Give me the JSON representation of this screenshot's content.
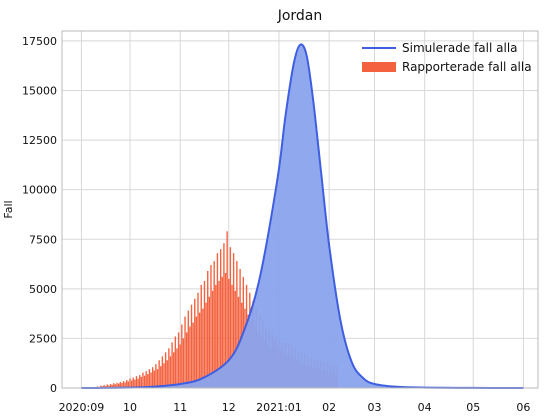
{
  "chart_data": {
    "type": "line",
    "title": "Jordan",
    "xlabel": "",
    "ylabel": "Fall",
    "x_tick_labels": [
      "2020:09",
      "10",
      "11",
      "12",
      "2021:01",
      "02",
      "03",
      "04",
      "05",
      "06"
    ],
    "x_ticks": [
      "2020-09-01",
      "2020-10-01",
      "2020-11-01",
      "2020-12-01",
      "2021-01-01",
      "2021-02-01",
      "2021-03-01",
      "2021-04-01",
      "2021-05-01",
      "2021-06-01"
    ],
    "xlim": [
      "2020-08-20",
      "2021-06-10"
    ],
    "ylim": [
      0,
      18000
    ],
    "y_ticks": [
      0,
      2500,
      5000,
      7500,
      10000,
      12500,
      15000,
      17500
    ],
    "y_tick_labels": [
      "0",
      "2500",
      "5000",
      "7500",
      "10000",
      "12500",
      "15000",
      "17500"
    ],
    "grid": true,
    "legend_position": "top-right",
    "legend": [
      "Simulerade fall alla",
      "Rapporterade fall alla"
    ],
    "simulated": {
      "name": "Simulerade fall alla",
      "color": "#3f5fe0",
      "fill_color": "#8aa3ec",
      "x": [
        "2020-09-01",
        "2020-09-15",
        "2020-10-01",
        "2020-10-15",
        "2020-11-01",
        "2020-11-15",
        "2020-12-01",
        "2020-12-10",
        "2020-12-20",
        "2020-12-31",
        "2021-01-05",
        "2021-01-10",
        "2021-01-14",
        "2021-01-18",
        "2021-01-22",
        "2021-01-27",
        "2021-02-01",
        "2021-02-08",
        "2021-02-15",
        "2021-02-22",
        "2021-03-01",
        "2021-03-15",
        "2021-04-01",
        "2021-05-01",
        "2021-06-01"
      ],
      "values": [
        0,
        5,
        20,
        60,
        200,
        500,
        1400,
        2800,
        5500,
        10500,
        13700,
        16300,
        17300,
        16800,
        14600,
        10900,
        7200,
        3400,
        1300,
        500,
        200,
        60,
        20,
        5,
        0
      ]
    },
    "reported": {
      "name": "Rapporterade fall alla",
      "color": "#f4613f",
      "start_date": "2020-09-10",
      "values": [
        60,
        80,
        40,
        120,
        90,
        150,
        100,
        180,
        130,
        200,
        160,
        240,
        190,
        260,
        220,
        300,
        250,
        350,
        280,
        400,
        330,
        480,
        380,
        520,
        420,
        600,
        470,
        650,
        560,
        780,
        620,
        850,
        700,
        950,
        780,
        1050,
        880,
        1200,
        950,
        1400,
        1100,
        1600,
        1250,
        1800,
        1400,
        2000,
        1600,
        2300,
        1800,
        2600,
        2000,
        2800,
        2200,
        3200,
        2500,
        3600,
        2800,
        3900,
        3100,
        4200,
        3300,
        4500,
        3600,
        4800,
        3800,
        5200,
        4000,
        5400,
        4300,
        5900,
        4600,
        6200,
        4900,
        6400,
        5200,
        6800,
        5400,
        7000,
        5600,
        7300,
        5800,
        7900,
        5500,
        7100,
        5200,
        6800,
        4900,
        6400,
        4600,
        6000,
        4300,
        5600,
        4000,
        5200,
        3700,
        4800,
        3400,
        4400,
        3100,
        4000,
        2800,
        3700,
        2600,
        3400,
        2400,
        3100,
        2200,
        2900,
        2000,
        2700,
        2400,
        2600,
        2100,
        2500,
        1900,
        2400,
        1800,
        2300,
        1700,
        2200,
        1600,
        2100,
        1500,
        2000,
        1400,
        1900,
        1300,
        1800,
        1200,
        1700,
        1150,
        1600,
        1100,
        1500,
        1050,
        1450,
        1000,
        1400,
        950,
        1350,
        900,
        1300,
        850,
        1250,
        800,
        1200,
        760,
        1150,
        720,
        1100
      ]
    }
  }
}
